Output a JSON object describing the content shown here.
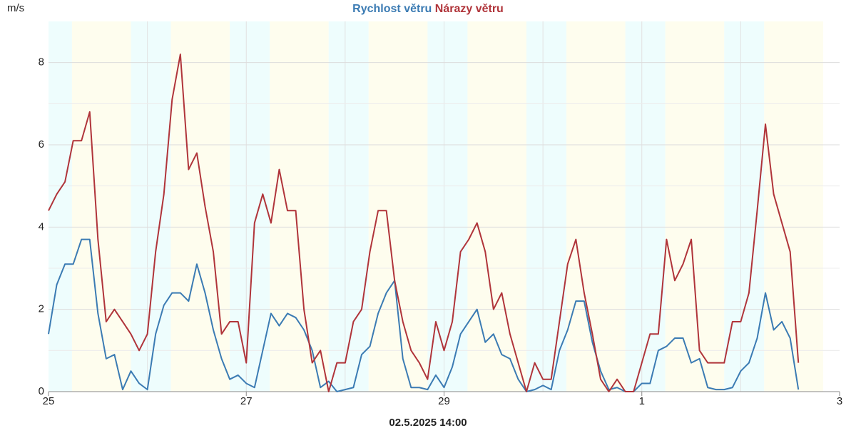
{
  "chart_data": {
    "type": "line",
    "y_label": "m/s",
    "annotation": "02.5.2025 14:00",
    "x": [
      0,
      2,
      4,
      6,
      8,
      10,
      12,
      14,
      16,
      18,
      20,
      22,
      24,
      26,
      28,
      30,
      32,
      34,
      36,
      38,
      40,
      42,
      44,
      46,
      48,
      50,
      52,
      54,
      56,
      58,
      60,
      62,
      64,
      66,
      68,
      70,
      72,
      74,
      76,
      78,
      80,
      82,
      84,
      86,
      88,
      90,
      92,
      94,
      96,
      98,
      100,
      102,
      104,
      106,
      108,
      110,
      112,
      114,
      116,
      118,
      120,
      122,
      124,
      126,
      128,
      130,
      132,
      134,
      136,
      138,
      140,
      142,
      144,
      146,
      148,
      150,
      152,
      154,
      156,
      158,
      160,
      162,
      164,
      166,
      168,
      170,
      172,
      174,
      176,
      178,
      180,
      182
    ],
    "series": [
      {
        "name": "Rychlost větru",
        "color": "#3b7bb3",
        "values": [
          1.4,
          2.6,
          3.1,
          3.1,
          3.7,
          3.7,
          1.9,
          0.8,
          0.9,
          0.05,
          0.5,
          0.2,
          0.05,
          1.4,
          2.1,
          2.4,
          2.4,
          2.2,
          3.1,
          2.4,
          1.5,
          0.8,
          0.3,
          0.4,
          0.2,
          0.1,
          1.0,
          1.9,
          1.6,
          1.9,
          1.8,
          1.5,
          1.0,
          0.1,
          0.25,
          0,
          0.05,
          0.1,
          0.9,
          1.1,
          1.9,
          2.4,
          2.7,
          0.8,
          0.1,
          0.1,
          0.05,
          0.4,
          0.1,
          0.6,
          1.4,
          1.7,
          2.0,
          1.2,
          1.4,
          0.9,
          0.8,
          0.3,
          0,
          0.05,
          0.15,
          0.05,
          1.0,
          1.5,
          2.2,
          2.2,
          1.2,
          0.5,
          0.05,
          0.1,
          0,
          0,
          0.2,
          0.2,
          1.0,
          1.1,
          1.3,
          1.3,
          0.7,
          0.8,
          0.1,
          0.05,
          0.05,
          0.1,
          0.5,
          0.7,
          1.3,
          2.4,
          1.5,
          1.7,
          1.3,
          0.05
        ]
      },
      {
        "name": "Nárazy větru",
        "color": "#b0343a",
        "values": [
          4.4,
          4.8,
          5.1,
          6.1,
          6.1,
          6.8,
          3.7,
          1.7,
          2.0,
          1.7,
          1.4,
          1.0,
          1.4,
          3.4,
          4.8,
          7.1,
          8.2,
          5.4,
          5.8,
          4.5,
          3.4,
          1.4,
          1.7,
          1.7,
          0.7,
          4.1,
          4.8,
          4.1,
          5.4,
          4.4,
          4.4,
          2.0,
          0.7,
          1.0,
          0,
          0.7,
          0.7,
          1.7,
          2.0,
          3.4,
          4.4,
          4.4,
          2.7,
          1.7,
          1.0,
          0.7,
          0.3,
          1.7,
          1.0,
          1.7,
          3.4,
          3.7,
          4.1,
          3.4,
          2.0,
          2.4,
          1.4,
          0.7,
          0,
          0.7,
          0.3,
          0.3,
          1.7,
          3.1,
          3.7,
          2.4,
          1.4,
          0.3,
          0,
          0.3,
          0,
          0,
          0.7,
          1.4,
          1.4,
          3.7,
          2.7,
          3.1,
          3.7,
          1.0,
          0.7,
          0.7,
          0.7,
          1.7,
          1.7,
          2.4,
          4.4,
          6.5,
          4.8,
          4.1,
          3.4,
          0.7
        ]
      }
    ],
    "xlim": [
      0,
      192
    ],
    "xticks": [
      {
        "value": 0,
        "label": "25"
      },
      {
        "value": 48,
        "label": "27"
      },
      {
        "value": 96,
        "label": "29"
      },
      {
        "value": 144,
        "label": "1"
      },
      {
        "value": 192,
        "label": "3"
      }
    ],
    "ylim": [
      0,
      9
    ],
    "yticks": [
      0,
      2,
      4,
      6,
      8
    ],
    "grid": true
  }
}
